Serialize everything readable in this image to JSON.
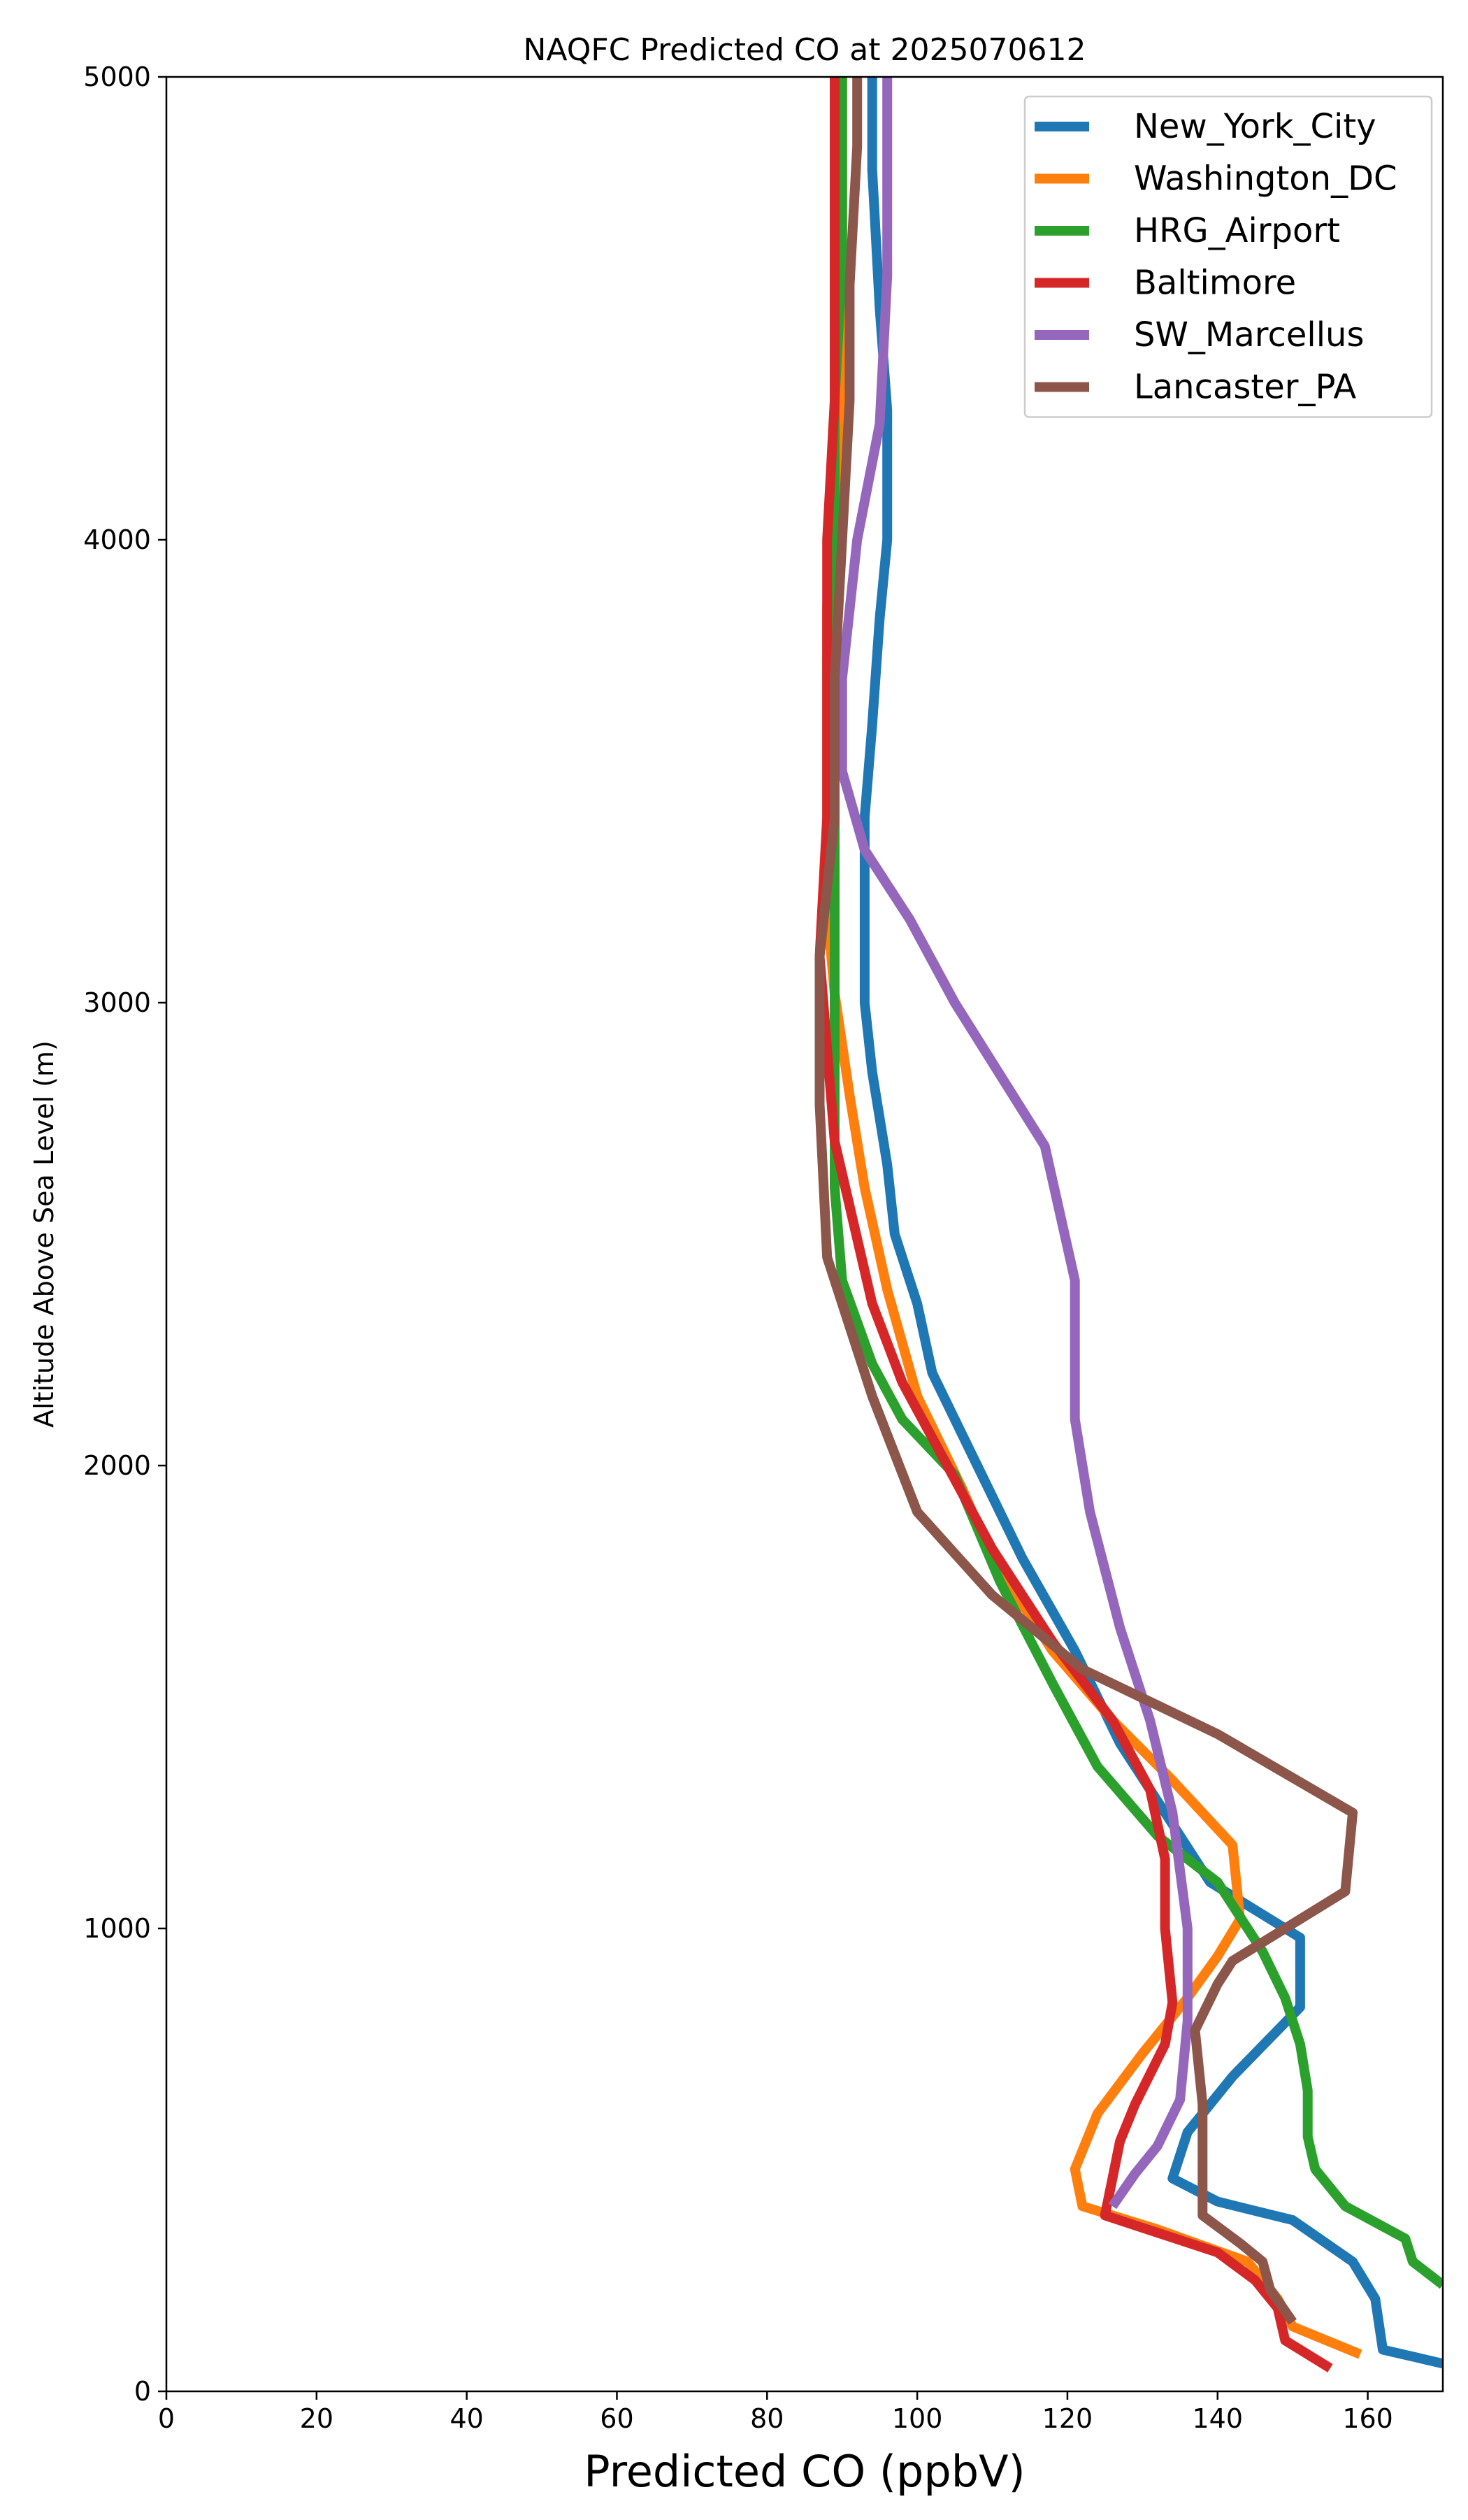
{
  "chart_data": {
    "type": "line",
    "title": "NAQFC Predicted CO at 2025070612",
    "xlabel": "Predicted CO (ppbV)",
    "ylabel": "Altitude Above Sea Level (m)",
    "xlim": [
      0,
      170
    ],
    "ylim": [
      0,
      5000
    ],
    "x_ticks": [
      0,
      20,
      40,
      60,
      80,
      100,
      120,
      140,
      160
    ],
    "y_ticks": [
      0,
      1000,
      2000,
      3000,
      4000,
      5000
    ],
    "grid": false,
    "legend_position": "top-right",
    "series": [
      {
        "name": "New_York_City",
        "color": "#1f77b4",
        "points": [
          [
            170,
            60
          ],
          [
            162,
            90
          ],
          [
            161,
            200
          ],
          [
            158,
            280
          ],
          [
            150,
            370
          ],
          [
            140,
            410
          ],
          [
            134,
            460
          ],
          [
            136,
            560
          ],
          [
            139,
            620
          ],
          [
            142,
            680
          ],
          [
            148,
            780
          ],
          [
            151,
            830
          ],
          [
            151,
            980
          ],
          [
            146,
            1030
          ],
          [
            139,
            1100
          ],
          [
            135,
            1200
          ],
          [
            131,
            1300
          ],
          [
            127,
            1400
          ],
          [
            121,
            1600
          ],
          [
            114,
            1800
          ],
          [
            108,
            2000
          ],
          [
            102,
            2200
          ],
          [
            100,
            2350
          ],
          [
            97,
            2500
          ],
          [
            96,
            2650
          ],
          [
            94,
            2850
          ],
          [
            93,
            3000
          ],
          [
            93,
            3200
          ],
          [
            93,
            3400
          ],
          [
            94,
            3600
          ],
          [
            95,
            3830
          ],
          [
            96,
            4000
          ],
          [
            96,
            4280
          ],
          [
            95,
            4500
          ],
          [
            94,
            4800
          ],
          [
            94,
            5000
          ]
        ]
      },
      {
        "name": "Washington_DC",
        "color": "#ff7f0e",
        "points": [
          [
            159,
            80
          ],
          [
            150,
            140
          ],
          [
            148,
            200
          ],
          [
            144,
            280
          ],
          [
            132,
            350
          ],
          [
            122,
            400
          ],
          [
            121,
            480
          ],
          [
            124,
            600
          ],
          [
            130,
            730
          ],
          [
            136,
            850
          ],
          [
            140,
            940
          ],
          [
            143,
            1020
          ],
          [
            142,
            1180
          ],
          [
            134,
            1320
          ],
          [
            126,
            1450
          ],
          [
            118,
            1600
          ],
          [
            110,
            1800
          ],
          [
            106,
            1950
          ],
          [
            100,
            2150
          ],
          [
            96,
            2380
          ],
          [
            93,
            2600
          ],
          [
            91,
            2800
          ],
          [
            89,
            3020
          ],
          [
            88,
            3200
          ],
          [
            88,
            3430
          ],
          [
            88,
            3650
          ],
          [
            88,
            3860
          ],
          [
            89,
            4000
          ],
          [
            90,
            4200
          ],
          [
            90,
            4450
          ],
          [
            90,
            4700
          ],
          [
            90,
            5000
          ]
        ]
      },
      {
        "name": "HRG_Airport",
        "color": "#2ca02c",
        "points": [
          [
            170,
            230
          ],
          [
            166,
            280
          ],
          [
            165,
            330
          ],
          [
            157,
            400
          ],
          [
            153,
            480
          ],
          [
            152,
            550
          ],
          [
            152,
            650
          ],
          [
            151,
            750
          ],
          [
            149,
            850
          ],
          [
            146,
            950
          ],
          [
            140,
            1100
          ],
          [
            132,
            1200
          ],
          [
            124,
            1350
          ],
          [
            118,
            1530
          ],
          [
            111,
            1750
          ],
          [
            105,
            1980
          ],
          [
            98,
            2100
          ],
          [
            94,
            2220
          ],
          [
            90,
            2400
          ],
          [
            89,
            2600
          ],
          [
            89,
            2800
          ],
          [
            89,
            3000
          ],
          [
            89,
            3200
          ],
          [
            89,
            3450
          ],
          [
            89,
            3700
          ],
          [
            89,
            4000
          ],
          [
            89,
            4300
          ],
          [
            90,
            4600
          ],
          [
            90,
            5000
          ]
        ]
      },
      {
        "name": "Baltimore",
        "color": "#d62728",
        "points": [
          [
            155,
            50
          ],
          [
            149,
            110
          ],
          [
            148,
            180
          ],
          [
            145,
            240
          ],
          [
            140,
            300
          ],
          [
            125,
            380
          ],
          [
            126,
            460
          ],
          [
            127,
            540
          ],
          [
            129,
            620
          ],
          [
            133,
            750
          ],
          [
            134,
            840
          ],
          [
            133,
            1000
          ],
          [
            133,
            1150
          ],
          [
            131,
            1300
          ],
          [
            126,
            1450
          ],
          [
            118,
            1620
          ],
          [
            110,
            1820
          ],
          [
            104,
            2000
          ],
          [
            98,
            2180
          ],
          [
            94,
            2350
          ],
          [
            89,
            2700
          ],
          [
            88,
            2900
          ],
          [
            87,
            3100
          ],
          [
            88,
            3400
          ],
          [
            88,
            3700
          ],
          [
            88,
            4000
          ],
          [
            89,
            4300
          ],
          [
            89,
            4750
          ],
          [
            89,
            5000
          ]
        ]
      },
      {
        "name": "SW_Marcellus",
        "color": "#9467bd",
        "points": [
          [
            126,
            400
          ],
          [
            129,
            470
          ],
          [
            132,
            530
          ],
          [
            135,
            630
          ],
          [
            136,
            800
          ],
          [
            136,
            1000
          ],
          [
            134,
            1250
          ],
          [
            131,
            1450
          ],
          [
            127,
            1650
          ],
          [
            123,
            1900
          ],
          [
            121,
            2100
          ],
          [
            121,
            2400
          ],
          [
            117,
            2690
          ],
          [
            105,
            3000
          ],
          [
            99,
            3180
          ],
          [
            93,
            3330
          ],
          [
            90,
            3500
          ],
          [
            90,
            3700
          ],
          [
            92,
            4000
          ],
          [
            95,
            4250
          ],
          [
            96,
            4570
          ],
          [
            96,
            4800
          ],
          [
            96,
            5000
          ]
        ]
      },
      {
        "name": "Lancaster_PA",
        "color": "#8c564b",
        "points": [
          [
            150,
            150
          ],
          [
            147,
            220
          ],
          [
            146,
            280
          ],
          [
            143,
            320
          ],
          [
            138,
            380
          ],
          [
            138,
            500
          ],
          [
            138,
            620
          ],
          [
            137,
            780
          ],
          [
            140,
            880
          ],
          [
            142,
            930
          ],
          [
            157,
            1080
          ],
          [
            158,
            1250
          ],
          [
            140,
            1420
          ],
          [
            122,
            1560
          ],
          [
            110,
            1720
          ],
          [
            100,
            1900
          ],
          [
            94,
            2150
          ],
          [
            88,
            2450
          ],
          [
            87,
            2780
          ],
          [
            87,
            3100
          ],
          [
            89,
            3400
          ],
          [
            89,
            3700
          ],
          [
            90,
            4000
          ],
          [
            91,
            4300
          ],
          [
            91,
            4550
          ],
          [
            92,
            4850
          ],
          [
            92,
            5000
          ]
        ]
      }
    ]
  }
}
